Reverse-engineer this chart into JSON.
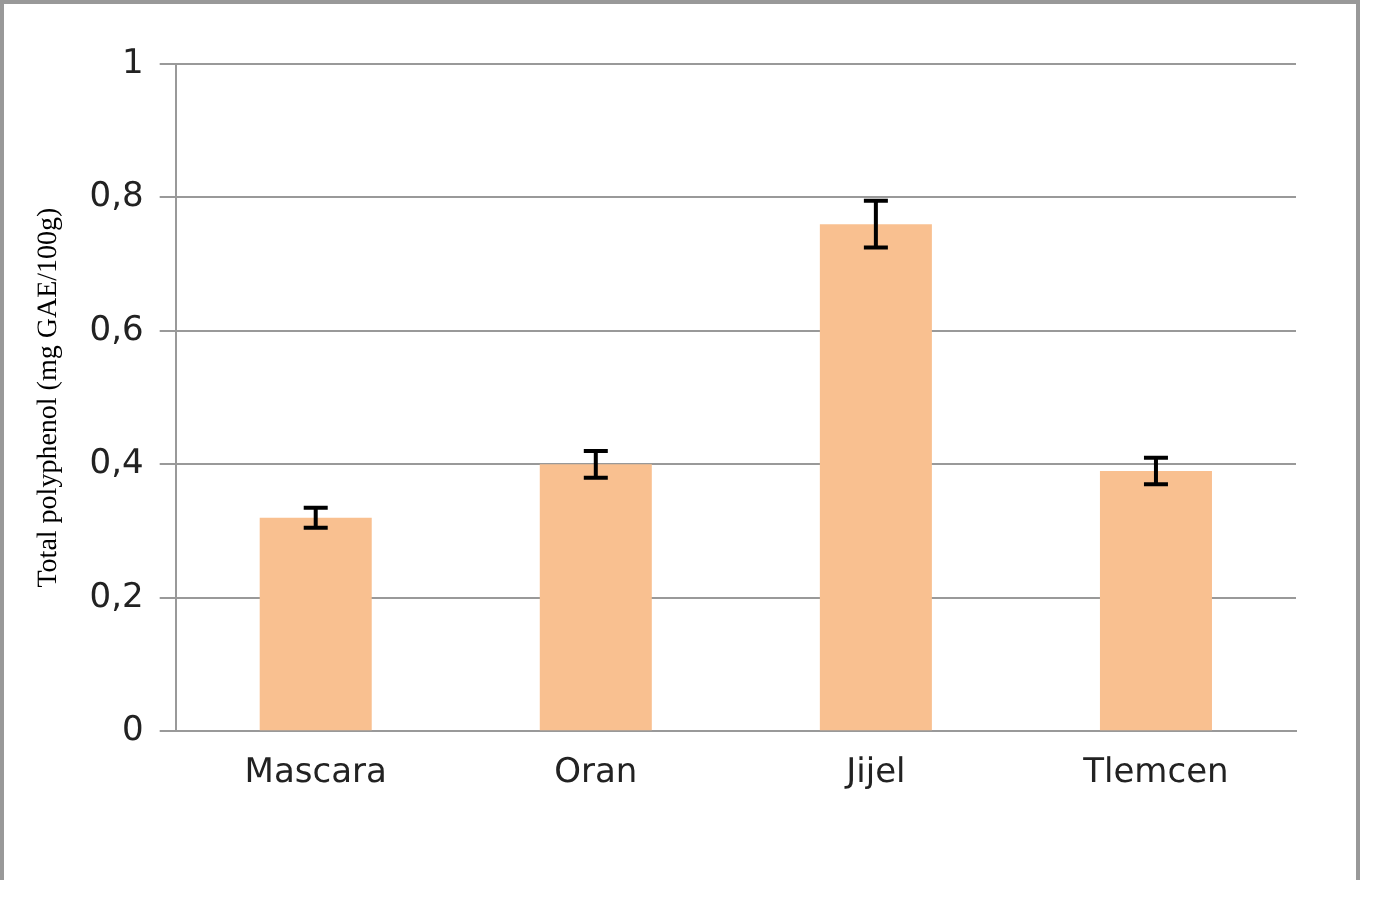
{
  "chart_data": {
    "type": "bar",
    "ylabel": "Total polyphenol (mg GAE/100g)",
    "categories": [
      "Mascara",
      "Oran",
      "Jijel",
      "Tlemcen"
    ],
    "values": [
      0.32,
      0.4,
      0.76,
      0.39
    ],
    "errors": [
      0.015,
      0.02,
      0.035,
      0.02
    ],
    "color": "#f9c090",
    "ylim": [
      0,
      1
    ],
    "yticks": [
      0,
      {
        "value": 0.2,
        "label": "0,2"
      },
      {
        "value": 0.4,
        "label": "0,4"
      },
      {
        "value": 0.6,
        "label": "0,6"
      },
      {
        "value": 0.8,
        "label": "0,8"
      },
      1
    ],
    "grid": "y",
    "legend": false
  }
}
